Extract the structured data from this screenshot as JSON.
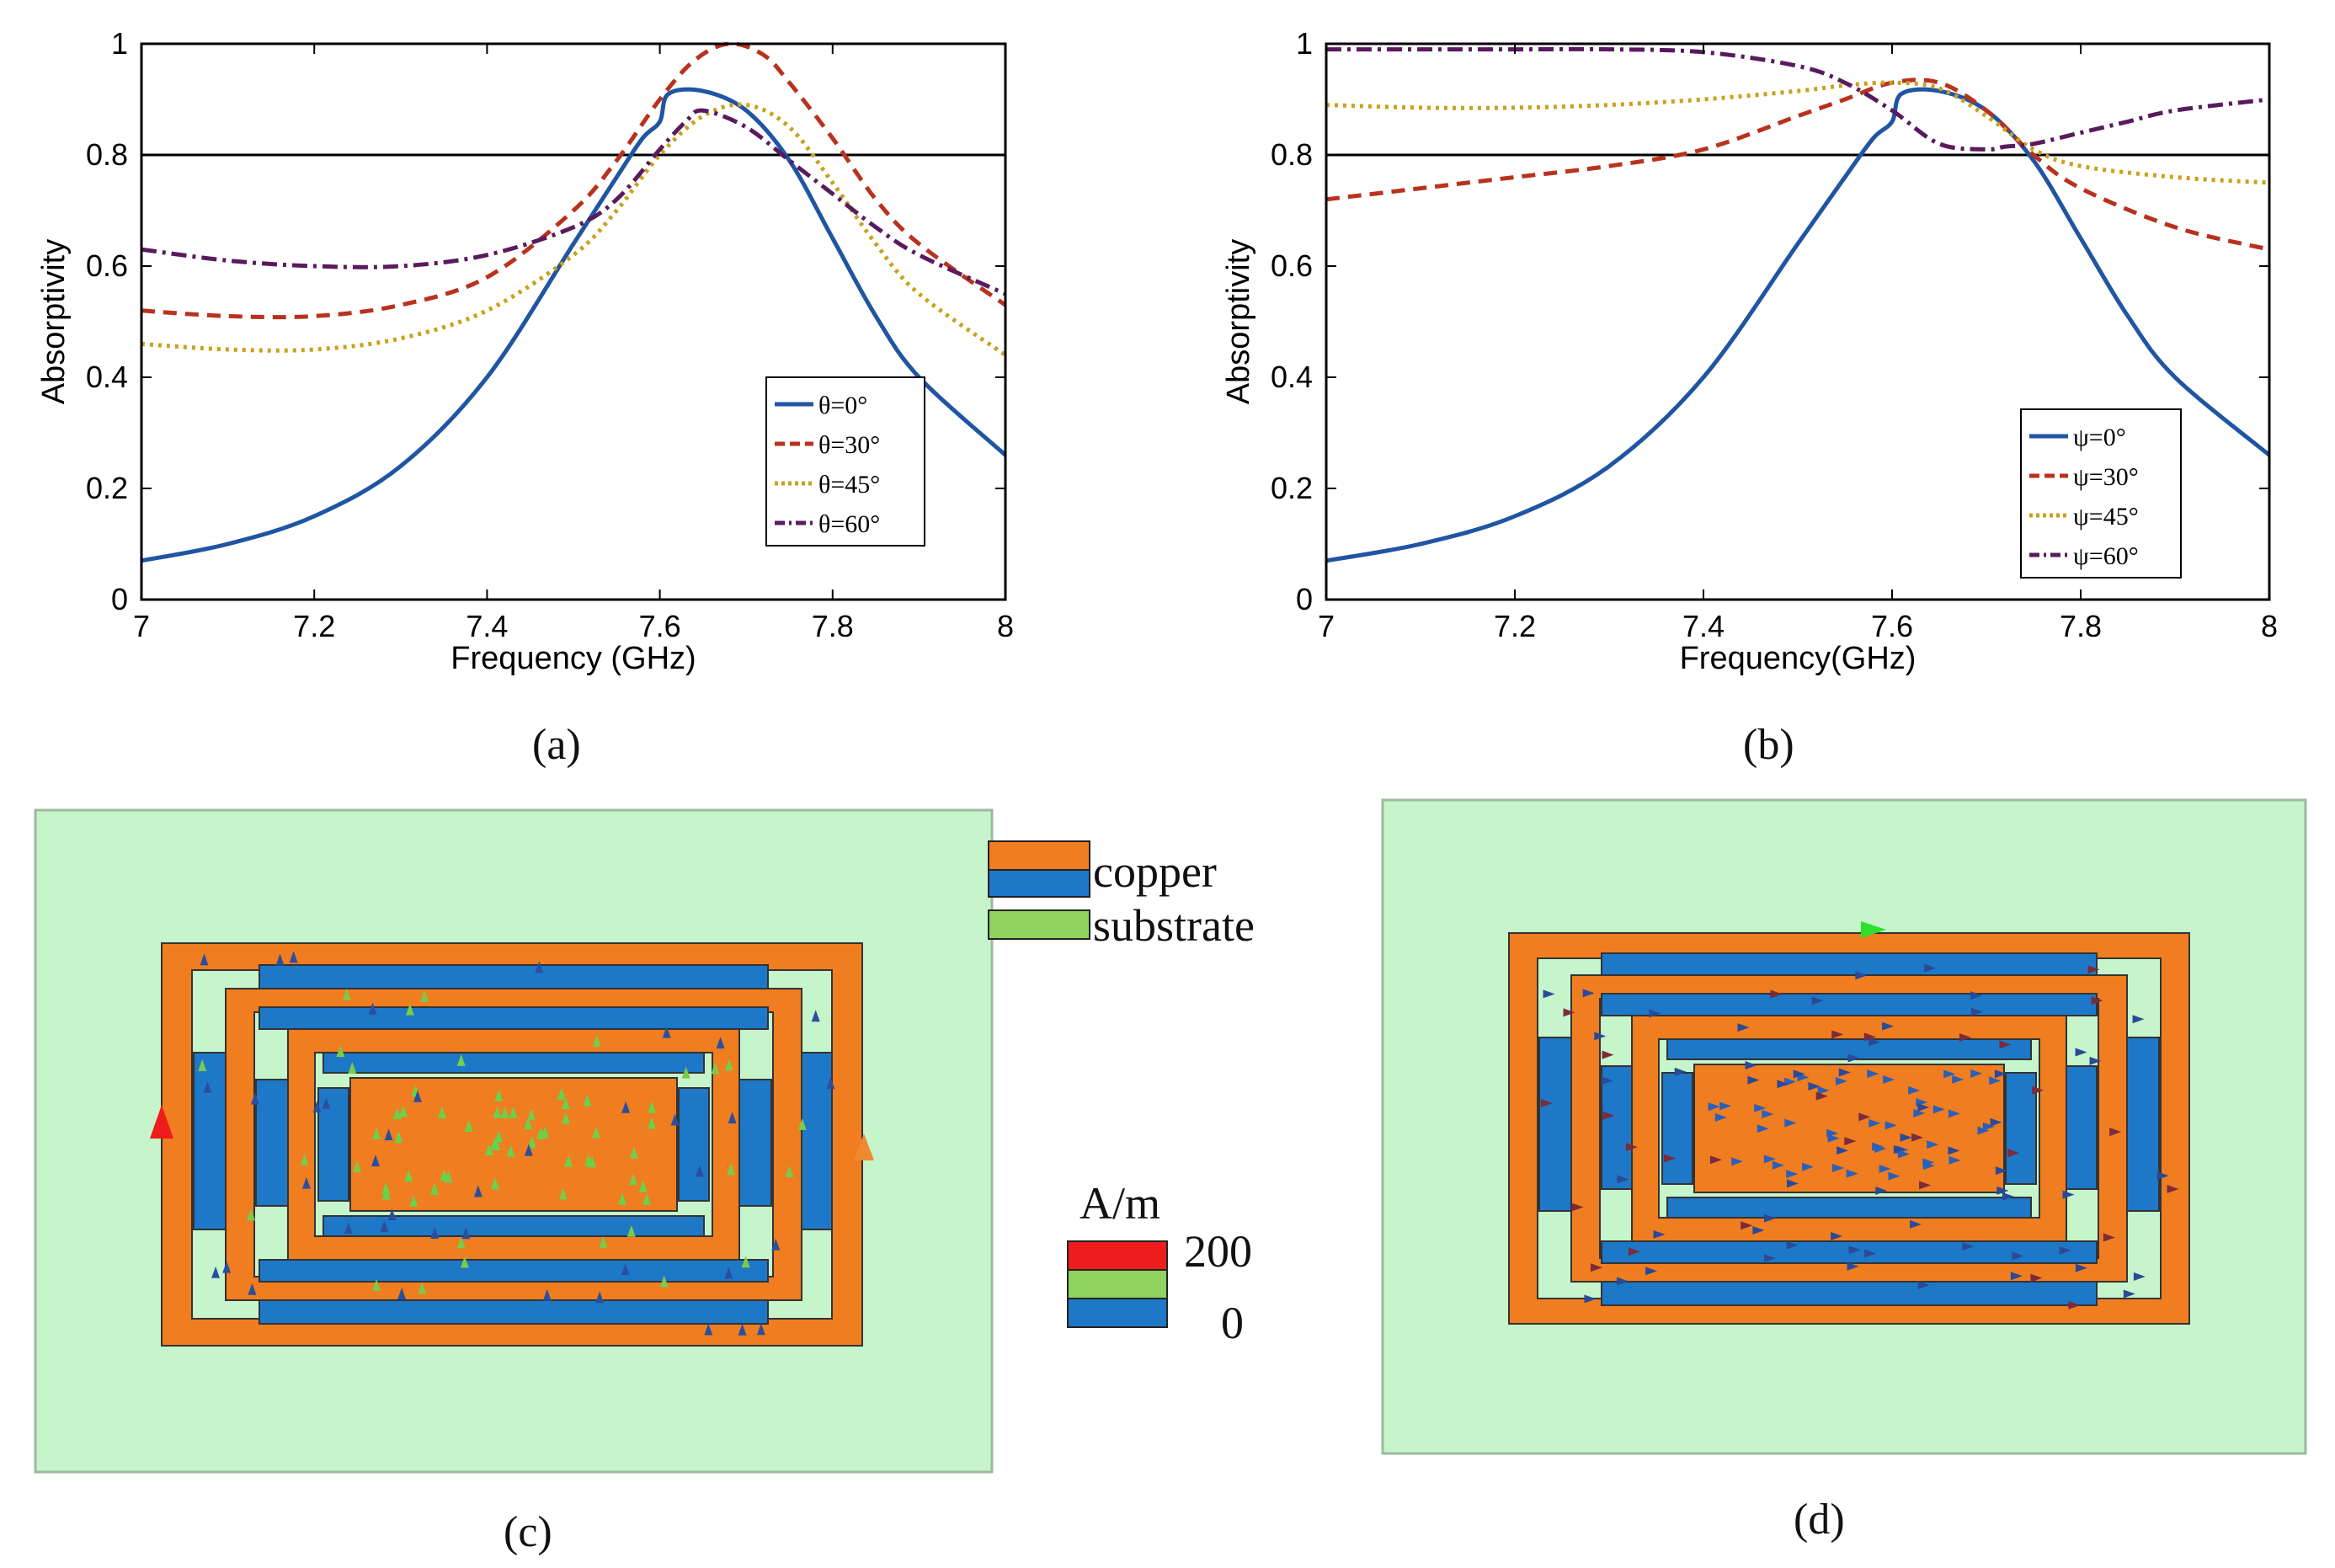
{
  "captions": [
    "(a)",
    "(b)",
    "(c)",
    "(d)"
  ],
  "material_legend": {
    "copper_label": "copper",
    "substrate_label": "substrate",
    "copper_colors": [
      "#f07d20",
      "#1e78c8"
    ],
    "substrate_color": "#8fd45c"
  },
  "current_legend": {
    "unit_label": "A/m",
    "max_label": "200",
    "min_label": "0",
    "colors": [
      "#ee1c1c",
      "#8fd45c",
      "#1e78c8"
    ]
  },
  "colors": {
    "substrate_bg": "#c6f5cc",
    "copper": "#f07d20",
    "gap": "#1e78c8",
    "outline": "#333333"
  },
  "chart_data": [
    {
      "type": "line",
      "panel": "a",
      "xlabel": "Frequency (GHz)",
      "ylabel": "Absorptivity",
      "xlim": [
        7,
        8
      ],
      "ylim": [
        0,
        1
      ],
      "xticks": [
        "7",
        "7.2",
        "7.4",
        "7.6",
        "7.8",
        "8"
      ],
      "yticks": [
        "0",
        "0.2",
        "0.4",
        "0.6",
        "0.8",
        "1"
      ],
      "reference_line": 0.8,
      "legend_position": "bottom-right",
      "series": [
        {
          "name": "θ=0°",
          "color": "#1f55a3",
          "dash": "solid",
          "x": [
            7,
            7.1,
            7.2,
            7.3,
            7.4,
            7.5,
            7.55,
            7.58,
            7.6,
            7.61,
            7.65,
            7.7,
            7.75,
            7.8,
            7.85,
            7.9,
            8
          ],
          "y": [
            0.07,
            0.1,
            0.15,
            0.24,
            0.4,
            0.64,
            0.76,
            0.83,
            0.86,
            0.91,
            0.915,
            0.88,
            0.79,
            0.65,
            0.51,
            0.4,
            0.26
          ]
        },
        {
          "name": "θ=30°",
          "color": "#b8321e",
          "dash": "16,10",
          "x": [
            7,
            7.1,
            7.2,
            7.3,
            7.4,
            7.5,
            7.55,
            7.6,
            7.64,
            7.68,
            7.72,
            7.75,
            7.8,
            7.85,
            7.9,
            8
          ],
          "y": [
            0.52,
            0.51,
            0.51,
            0.53,
            0.58,
            0.7,
            0.79,
            0.9,
            0.97,
            1.0,
            0.98,
            0.93,
            0.83,
            0.72,
            0.64,
            0.53
          ]
        },
        {
          "name": "θ=45°",
          "color": "#c9a21b",
          "dash": "4,6",
          "x": [
            7,
            7.1,
            7.2,
            7.3,
            7.4,
            7.5,
            7.55,
            7.6,
            7.65,
            7.7,
            7.75,
            7.8,
            7.85,
            7.9,
            8
          ],
          "y": [
            0.46,
            0.45,
            0.45,
            0.47,
            0.52,
            0.62,
            0.7,
            0.8,
            0.87,
            0.89,
            0.85,
            0.75,
            0.64,
            0.55,
            0.44
          ]
        },
        {
          "name": "θ=60°",
          "color": "#5a1a5e",
          "dash": "18,7,4,7",
          "x": [
            7,
            7.1,
            7.2,
            7.3,
            7.4,
            7.5,
            7.55,
            7.6,
            7.63,
            7.65,
            7.7,
            7.75,
            7.8,
            7.85,
            7.9,
            8
          ],
          "y": [
            0.63,
            0.61,
            0.6,
            0.6,
            0.62,
            0.67,
            0.72,
            0.81,
            0.86,
            0.88,
            0.85,
            0.79,
            0.73,
            0.67,
            0.62,
            0.55
          ]
        }
      ]
    },
    {
      "type": "line",
      "panel": "b",
      "xlabel": "Frequency(GHz)",
      "ylabel": "Absorptivity",
      "xlim": [
        7,
        8
      ],
      "ylim": [
        0,
        1
      ],
      "xticks": [
        "7",
        "7.2",
        "7.4",
        "7.6",
        "7.8",
        "8"
      ],
      "yticks": [
        "0",
        "0.2",
        "0.4",
        "0.6",
        "0.8",
        "1"
      ],
      "reference_line": 0.8,
      "legend_position": "bottom-right",
      "series": [
        {
          "name": "ψ=0°",
          "color": "#1f55a3",
          "dash": "solid",
          "x": [
            7,
            7.1,
            7.2,
            7.3,
            7.4,
            7.5,
            7.55,
            7.58,
            7.6,
            7.61,
            7.65,
            7.7,
            7.75,
            7.8,
            7.85,
            7.9,
            8
          ],
          "y": [
            0.07,
            0.1,
            0.15,
            0.24,
            0.4,
            0.64,
            0.76,
            0.83,
            0.86,
            0.91,
            0.915,
            0.88,
            0.79,
            0.65,
            0.51,
            0.4,
            0.26
          ]
        },
        {
          "name": "ψ=30°",
          "color": "#b8321e",
          "dash": "16,10",
          "x": [
            7,
            7.1,
            7.2,
            7.3,
            7.4,
            7.5,
            7.55,
            7.6,
            7.65,
            7.7,
            7.75,
            7.8,
            7.9,
            8
          ],
          "y": [
            0.72,
            0.74,
            0.76,
            0.78,
            0.81,
            0.87,
            0.9,
            0.93,
            0.93,
            0.88,
            0.8,
            0.74,
            0.67,
            0.63
          ]
        },
        {
          "name": "ψ=45°",
          "color": "#c9a21b",
          "dash": "4,6",
          "x": [
            7,
            7.1,
            7.2,
            7.3,
            7.4,
            7.5,
            7.55,
            7.6,
            7.65,
            7.7,
            7.75,
            7.8,
            7.9,
            8
          ],
          "y": [
            0.89,
            0.885,
            0.885,
            0.89,
            0.9,
            0.915,
            0.925,
            0.93,
            0.92,
            0.87,
            0.81,
            0.78,
            0.76,
            0.75
          ]
        },
        {
          "name": "ψ=60°",
          "color": "#5a1a5e",
          "dash": "18,7,4,7",
          "x": [
            7,
            7.1,
            7.2,
            7.3,
            7.4,
            7.5,
            7.55,
            7.6,
            7.65,
            7.7,
            7.72,
            7.75,
            7.8,
            7.85,
            7.9,
            8
          ],
          "y": [
            0.99,
            0.99,
            0.99,
            0.99,
            0.985,
            0.96,
            0.93,
            0.88,
            0.82,
            0.81,
            0.815,
            0.82,
            0.84,
            0.86,
            0.88,
            0.9
          ]
        }
      ]
    }
  ]
}
